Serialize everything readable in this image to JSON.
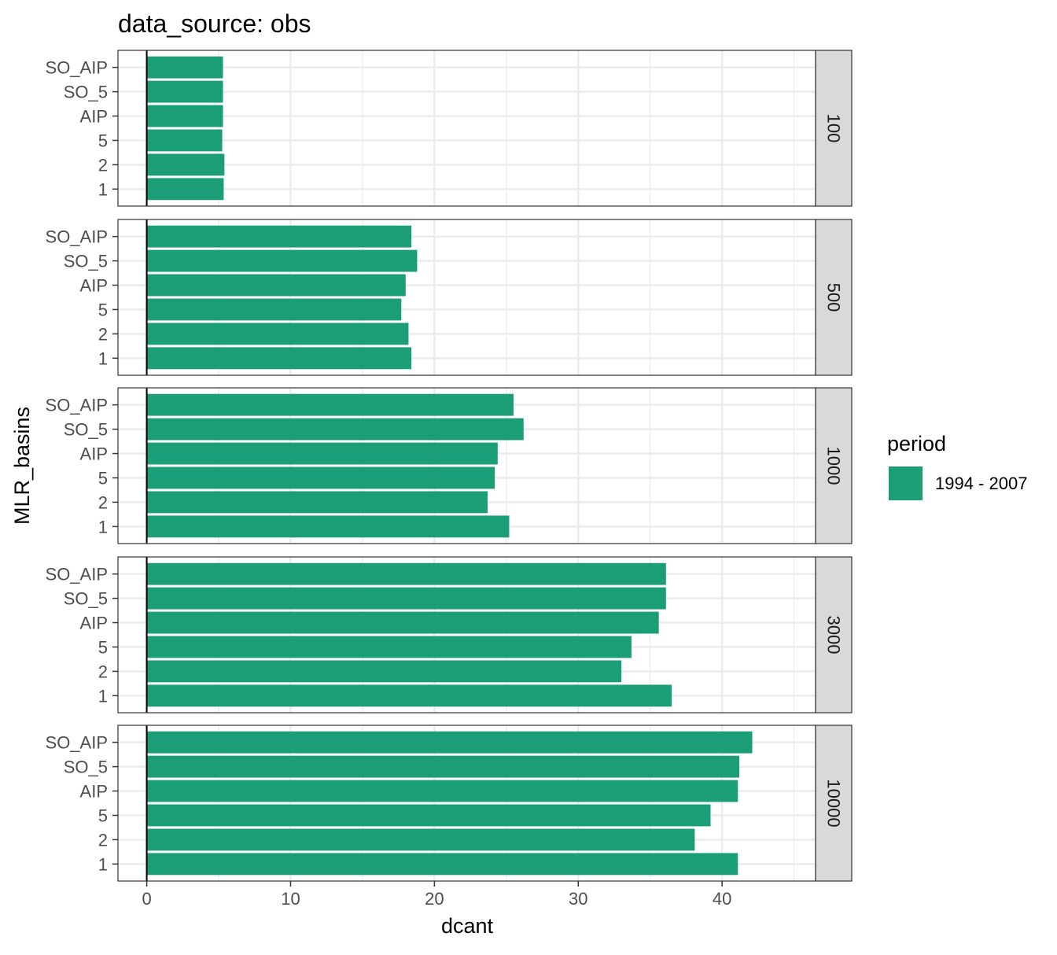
{
  "chart_data": {
    "type": "bar",
    "orientation": "horizontal",
    "title": "data_source: obs",
    "xlabel": "dcant",
    "ylabel": "MLR_basins",
    "xlim": [
      -2,
      46.5
    ],
    "x_ticks": [
      0,
      10,
      20,
      30,
      40
    ],
    "categories": [
      "SO_AIP",
      "SO_5",
      "AIP",
      "5",
      "2",
      "1"
    ],
    "facet_row_var": "depth",
    "facets": [
      {
        "label": "100",
        "values": [
          5.3,
          5.3,
          5.3,
          5.25,
          5.4,
          5.35
        ]
      },
      {
        "label": "500",
        "values": [
          18.4,
          18.8,
          18.0,
          17.7,
          18.2,
          18.4
        ]
      },
      {
        "label": "1000",
        "values": [
          25.5,
          26.2,
          24.4,
          24.2,
          23.7,
          25.2
        ]
      },
      {
        "label": "3000",
        "values": [
          36.1,
          36.1,
          35.6,
          33.7,
          33.0,
          36.5
        ]
      },
      {
        "label": "10000",
        "values": [
          42.1,
          41.2,
          41.1,
          39.2,
          38.1,
          41.1
        ]
      }
    ],
    "legend": {
      "title": "period",
      "placement": "right",
      "entries": [
        {
          "label": "1994 - 2007",
          "color": "#1b9e77"
        }
      ]
    },
    "colors": {
      "bar": "#1b9e77",
      "grid": "#ebebeb",
      "strip_bg": "#d9d9d9",
      "panel_border": "#333333"
    },
    "grid": true
  }
}
